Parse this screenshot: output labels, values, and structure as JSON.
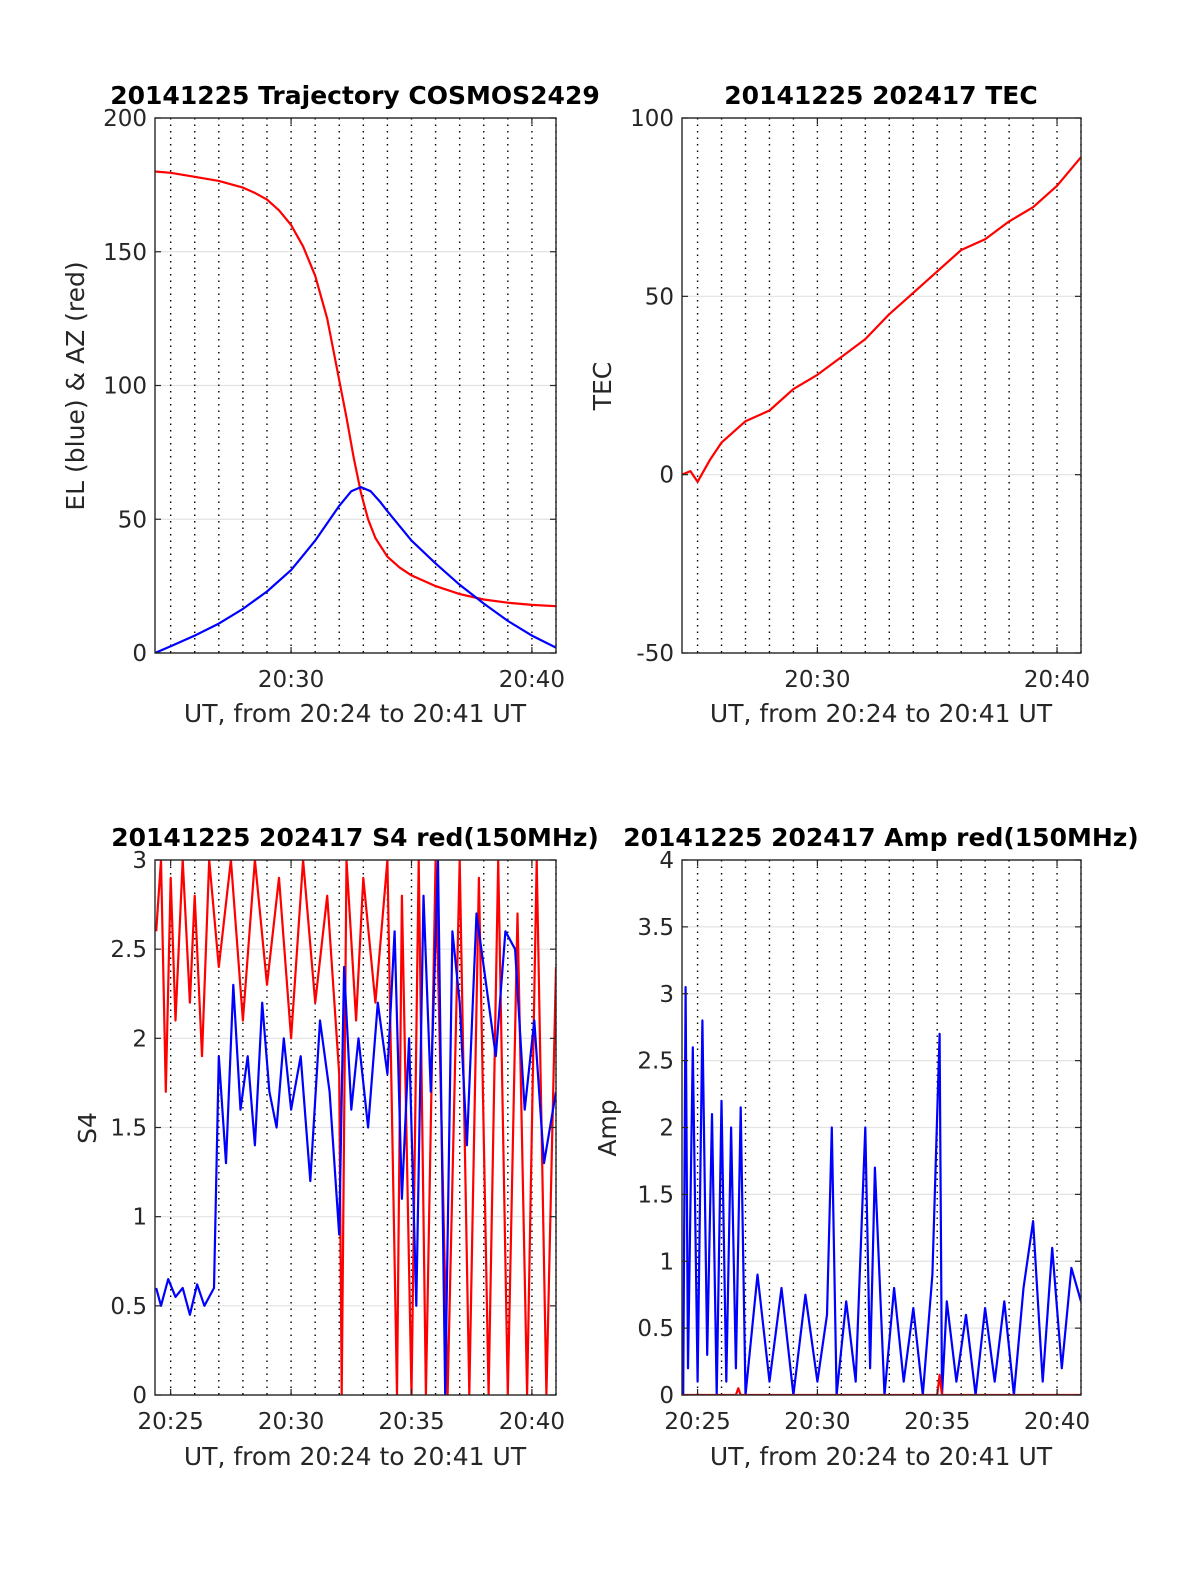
{
  "chart_data": [
    {
      "type": "line",
      "title": "20141225 Trajectory COSMOS2429",
      "xlabel": "UT, from 20:24 to 20:41 UT",
      "ylabel": "EL (blue) & AZ (red)",
      "x_unit": "minutes after 20:00 UT",
      "xlim": [
        24.35,
        41.0
      ],
      "ylim": [
        0,
        200
      ],
      "x_ticks": [
        {
          "value": 30,
          "label": "20:30"
        },
        {
          "value": 40,
          "label": "20:40"
        }
      ],
      "y_ticks": [
        {
          "value": 0,
          "label": "0"
        },
        {
          "value": 50,
          "label": "50"
        },
        {
          "value": 100,
          "label": "100"
        },
        {
          "value": 150,
          "label": "150"
        },
        {
          "value": 200,
          "label": "200"
        }
      ],
      "grid": true,
      "series": [
        {
          "color": "#ff0000",
          "x": [
            24.35,
            25.0,
            26.0,
            27.0,
            28.0,
            28.5,
            29.0,
            29.5,
            30.0,
            30.5,
            31.0,
            31.5,
            32.0,
            32.3,
            32.6,
            32.9,
            33.2,
            33.5,
            34.0,
            34.5,
            35.0,
            36.0,
            37.0,
            38.0,
            39.0,
            40.0,
            41.0
          ],
          "y": [
            180,
            179.5,
            178,
            176.5,
            174,
            172,
            169.5,
            165.5,
            160,
            152,
            141,
            125,
            102,
            88,
            73,
            60,
            50,
            43,
            36,
            32,
            29,
            25,
            22,
            20,
            18.8,
            18,
            17.5
          ]
        },
        {
          "color": "#0000ff",
          "x": [
            24.35,
            25.0,
            26.0,
            27.0,
            28.0,
            29.0,
            30.0,
            30.5,
            31.0,
            31.5,
            32.0,
            32.5,
            32.9,
            33.3,
            33.7,
            34.0,
            34.5,
            35.0,
            36.0,
            37.0,
            38.0,
            39.0,
            40.0,
            41.0
          ],
          "y": [
            0,
            2.5,
            6.5,
            11,
            16.5,
            23,
            31,
            36.5,
            42,
            48.5,
            55,
            60.5,
            62,
            60.5,
            56.5,
            53,
            47.5,
            42,
            33.5,
            25.5,
            18.5,
            12,
            6.5,
            2
          ]
        }
      ]
    },
    {
      "type": "line",
      "title": "20141225 202417 TEC",
      "xlabel": "UT, from 20:24 to 20:41 UT",
      "ylabel": "TEC",
      "x_unit": "minutes after 20:00 UT",
      "xlim": [
        24.35,
        41.0
      ],
      "ylim": [
        -50,
        100
      ],
      "x_ticks": [
        {
          "value": 30,
          "label": "20:30"
        },
        {
          "value": 40,
          "label": "20:40"
        }
      ],
      "y_ticks": [
        {
          "value": -50,
          "label": "-50"
        },
        {
          "value": 0,
          "label": "0"
        },
        {
          "value": 50,
          "label": "50"
        },
        {
          "value": 100,
          "label": "100"
        }
      ],
      "grid": true,
      "series": [
        {
          "color": "#ff0000",
          "x": [
            24.35,
            24.7,
            25.0,
            25.5,
            26.0,
            27.0,
            28.0,
            29.0,
            30.0,
            31.0,
            32.0,
            33.0,
            34.0,
            35.0,
            36.0,
            37.0,
            38.0,
            39.0,
            40.0,
            41.0
          ],
          "y": [
            0,
            1,
            -2,
            4,
            9,
            15,
            18,
            24,
            28,
            33,
            38,
            45,
            51,
            57,
            63,
            66,
            71,
            75,
            81,
            89
          ]
        }
      ]
    },
    {
      "type": "line",
      "title": "20141225 202417 S4 red(150MHz)",
      "xlabel": "UT, from 20:24 to 20:41 UT",
      "ylabel": "S4",
      "x_unit": "minutes after 20:00 UT",
      "xlim": [
        24.35,
        41.0
      ],
      "ylim": [
        0,
        3
      ],
      "x_ticks": [
        {
          "value": 25,
          "label": "20:25"
        },
        {
          "value": 30,
          "label": "20:30"
        },
        {
          "value": 35,
          "label": "20:35"
        },
        {
          "value": 40,
          "label": "20:40"
        }
      ],
      "y_ticks": [
        {
          "value": 0,
          "label": "0"
        },
        {
          "value": 0.5,
          "label": "0.5"
        },
        {
          "value": 1,
          "label": "1"
        },
        {
          "value": 1.5,
          "label": "1.5"
        },
        {
          "value": 2,
          "label": "2"
        },
        {
          "value": 2.5,
          "label": "2.5"
        },
        {
          "value": 3,
          "label": "3"
        }
      ],
      "grid": true,
      "series": [
        {
          "color": "#ff0000",
          "x": [
            24.4,
            24.6,
            24.8,
            25.0,
            25.2,
            25.5,
            25.8,
            26.0,
            26.3,
            26.6,
            27.0,
            27.5,
            28.0,
            28.5,
            29.0,
            29.5,
            30.0,
            30.5,
            31.0,
            31.5,
            32.0,
            32.1,
            32.3,
            32.7,
            33.0,
            33.5,
            34.0,
            34.4,
            34.6,
            35.0,
            35.3,
            35.6,
            36.0,
            36.5,
            37.0,
            37.4,
            37.8,
            38.2,
            38.6,
            39.0,
            39.4,
            39.8,
            40.2,
            40.6,
            41.0
          ],
          "y": [
            2.6,
            3.0,
            1.7,
            2.9,
            2.1,
            3.0,
            2.2,
            2.8,
            1.9,
            3.0,
            2.4,
            3.0,
            2.1,
            3.0,
            2.3,
            2.9,
            2.0,
            3.0,
            2.2,
            2.8,
            1.8,
            0.0,
            3.0,
            2.1,
            2.9,
            2.2,
            3.0,
            0.0,
            2.8,
            0.0,
            3.0,
            0.0,
            3.0,
            0.0,
            3.0,
            0.0,
            2.9,
            0.0,
            3.0,
            0.0,
            2.7,
            0.0,
            3.0,
            0.0,
            2.4
          ]
        },
        {
          "color": "#0000ff",
          "x": [
            24.4,
            24.6,
            24.9,
            25.2,
            25.5,
            25.8,
            26.1,
            26.4,
            26.6,
            26.8,
            27.0,
            27.3,
            27.6,
            27.9,
            28.2,
            28.5,
            28.8,
            29.1,
            29.4,
            29.7,
            30.0,
            30.4,
            30.8,
            31.2,
            31.6,
            32.0,
            32.2,
            32.5,
            32.8,
            33.2,
            33.6,
            34.0,
            34.3,
            34.6,
            34.9,
            35.2,
            35.5,
            35.8,
            36.1,
            36.4,
            36.7,
            37.0,
            37.3,
            37.7,
            38.1,
            38.5,
            38.9,
            39.3,
            39.7,
            40.1,
            40.5,
            41.0
          ],
          "y": [
            0.6,
            0.5,
            0.65,
            0.55,
            0.6,
            0.45,
            0.62,
            0.5,
            0.55,
            0.6,
            1.9,
            1.3,
            2.3,
            1.6,
            1.9,
            1.4,
            2.2,
            1.7,
            1.5,
            2.0,
            1.6,
            1.9,
            1.2,
            2.1,
            1.7,
            0.9,
            2.4,
            1.6,
            2.0,
            1.5,
            2.2,
            1.8,
            2.6,
            1.1,
            2.0,
            0.5,
            2.8,
            1.7,
            3.0,
            0.0,
            2.6,
            2.2,
            1.4,
            2.7,
            2.3,
            1.9,
            2.6,
            2.5,
            1.6,
            2.1,
            1.3,
            1.7
          ]
        }
      ]
    },
    {
      "type": "line",
      "title": "20141225 202417 Amp red(150MHz)",
      "xlabel": "UT, from 20:24 to 20:41 UT",
      "ylabel": "Amp",
      "x_unit": "minutes after 20:00 UT",
      "xlim": [
        24.35,
        41.0
      ],
      "ylim": [
        0,
        4
      ],
      "x_ticks": [
        {
          "value": 25,
          "label": "20:25"
        },
        {
          "value": 30,
          "label": "20:30"
        },
        {
          "value": 35,
          "label": "20:35"
        },
        {
          "value": 40,
          "label": "20:40"
        }
      ],
      "y_ticks": [
        {
          "value": 0,
          "label": "0"
        },
        {
          "value": 0.5,
          "label": "0.5"
        },
        {
          "value": 1,
          "label": "1"
        },
        {
          "value": 1.5,
          "label": "1.5"
        },
        {
          "value": 2,
          "label": "2"
        },
        {
          "value": 2.5,
          "label": "2.5"
        },
        {
          "value": 3,
          "label": "3"
        },
        {
          "value": 3.5,
          "label": "3.5"
        },
        {
          "value": 4,
          "label": "4"
        }
      ],
      "grid": true,
      "series": [
        {
          "color": "#0000ff",
          "x": [
            24.4,
            24.5,
            24.6,
            24.8,
            25.0,
            25.2,
            25.4,
            25.6,
            25.8,
            26.0,
            26.2,
            26.4,
            26.6,
            26.8,
            27.0,
            27.5,
            28.0,
            28.5,
            29.0,
            29.5,
            30.0,
            30.4,
            30.6,
            30.8,
            31.2,
            31.6,
            32.0,
            32.2,
            32.4,
            32.8,
            33.2,
            33.6,
            34.0,
            34.4,
            34.8,
            35.1,
            35.2,
            35.4,
            35.8,
            36.2,
            36.6,
            37.0,
            37.4,
            37.8,
            38.2,
            38.6,
            39.0,
            39.4,
            39.8,
            40.2,
            40.6,
            41.0
          ],
          "y": [
            0.0,
            3.05,
            0.2,
            2.6,
            0.1,
            2.8,
            0.3,
            2.1,
            0.0,
            2.2,
            0.1,
            2.0,
            0.2,
            2.15,
            0.0,
            0.9,
            0.1,
            0.8,
            0.0,
            0.75,
            0.1,
            0.6,
            2.0,
            0.0,
            0.7,
            0.1,
            2.0,
            0.2,
            1.7,
            0.0,
            0.8,
            0.1,
            0.65,
            0.0,
            0.9,
            2.7,
            0.0,
            0.7,
            0.1,
            0.6,
            0.0,
            0.65,
            0.1,
            0.7,
            0.0,
            0.8,
            1.3,
            0.1,
            1.1,
            0.2,
            0.95,
            0.7
          ]
        },
        {
          "color": "#ff0000",
          "x": [
            24.4,
            26.6,
            26.7,
            26.8,
            35.0,
            35.1,
            35.2,
            41.0
          ],
          "y": [
            0.0,
            0.0,
            0.05,
            0.0,
            0.0,
            0.15,
            0.0,
            0.0
          ]
        }
      ]
    }
  ]
}
